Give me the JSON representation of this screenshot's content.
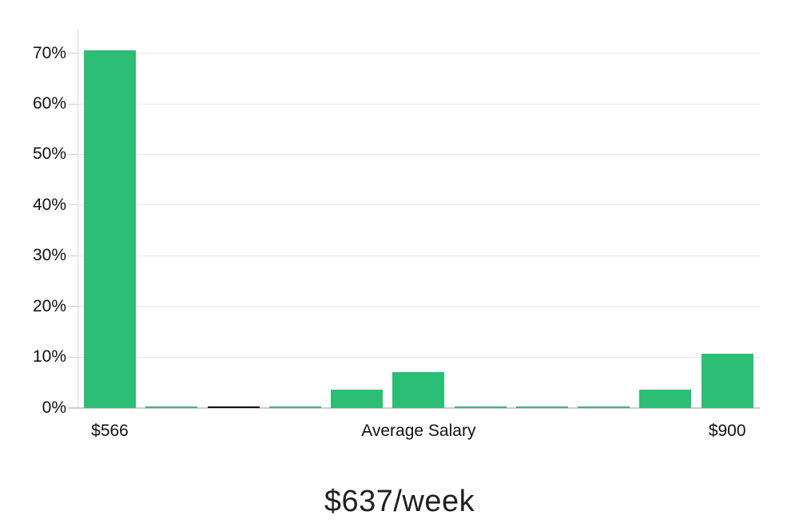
{
  "chart_data": {
    "type": "bar",
    "title": "$637/week",
    "unit": "%",
    "categories": [
      "$566",
      "",
      "",
      "",
      "",
      "Average Salary",
      "",
      "",
      "",
      "",
      "$900"
    ],
    "values": [
      70.6,
      0.3,
      0.3,
      0.3,
      3.5,
      7.0,
      0.3,
      0.3,
      0.3,
      3.5,
      10.6
    ],
    "highlight_bar_index": 2,
    "y_ticks": [
      "0%",
      "10%",
      "20%",
      "30%",
      "40%",
      "50%",
      "60%",
      "70%"
    ],
    "ylim": [
      0,
      74.7
    ],
    "xlabel": "",
    "ylabel": "",
    "legend": "none",
    "grid": "horizontal",
    "colors": {
      "bar": "#2cbe74",
      "highlight_bar": "#10102a",
      "gridline": "#e6e6e6",
      "axis_line": "#dcdcdc",
      "baseline": "#cccccc",
      "tick": "#cccccc",
      "axis_text": "#111111",
      "title_text": "#1f1f1f",
      "background": "#ffffff"
    }
  }
}
